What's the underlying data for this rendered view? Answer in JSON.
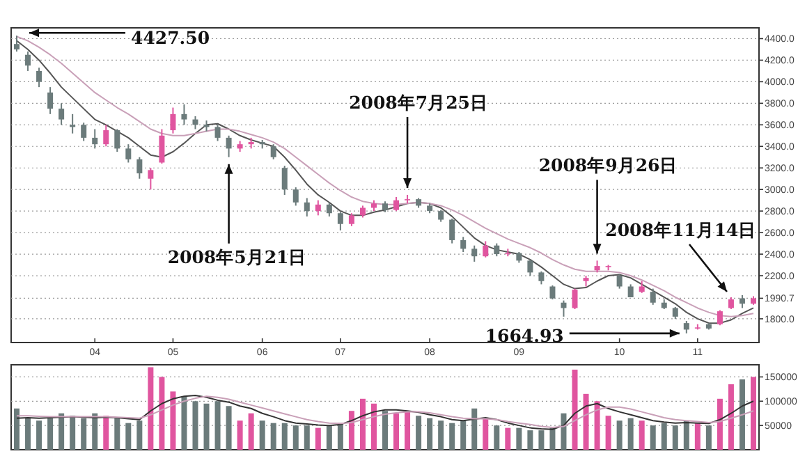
{
  "chart_data": [
    {
      "type": "candlestick",
      "ylim": [
        1580,
        4500
      ],
      "yticks": [
        {
          "value": 4400,
          "label": "4400.0"
        },
        {
          "value": 4200,
          "label": "4200.0"
        },
        {
          "value": 4000,
          "label": "4000.0"
        },
        {
          "value": 3800,
          "label": "3800.0"
        },
        {
          "value": 3600,
          "label": "3600.0"
        },
        {
          "value": 3400,
          "label": "3400.0"
        },
        {
          "value": 3200,
          "label": "3200.0"
        },
        {
          "value": 3000,
          "label": "3000.0"
        },
        {
          "value": 2800,
          "label": "2800.0"
        },
        {
          "value": 2600,
          "label": "2600.0"
        },
        {
          "value": 2400,
          "label": "2400.0"
        },
        {
          "value": 2200,
          "label": "2200.0"
        },
        {
          "value": 1990.7,
          "label": "1990.7"
        },
        {
          "value": 1800,
          "label": "1800.0"
        }
      ],
      "grid": "y",
      "categories": [
        null,
        null,
        null,
        null,
        null,
        null,
        null,
        "04",
        null,
        null,
        null,
        null,
        null,
        null,
        "05",
        null,
        null,
        null,
        null,
        null,
        null,
        null,
        "06",
        null,
        null,
        null,
        null,
        null,
        null,
        "07",
        null,
        null,
        null,
        null,
        null,
        null,
        null,
        "08",
        null,
        null,
        null,
        null,
        null,
        null,
        null,
        "09",
        null,
        null,
        null,
        null,
        null,
        null,
        null,
        null,
        "10",
        null,
        null,
        null,
        null,
        null,
        null,
        "11",
        null,
        null,
        null,
        null,
        null
      ],
      "ohlc": [
        [
          4350,
          4427.5,
          4280,
          4300
        ],
        [
          4250,
          4280,
          4100,
          4150
        ],
        [
          4100,
          4130,
          3950,
          4000
        ],
        [
          3900,
          3950,
          3700,
          3750
        ],
        [
          3750,
          3800,
          3600,
          3650
        ],
        [
          3600,
          3700,
          3520,
          3580
        ],
        [
          3600,
          3620,
          3450,
          3480
        ],
        [
          3480,
          3560,
          3380,
          3420
        ],
        [
          3420,
          3600,
          3400,
          3550
        ],
        [
          3550,
          3560,
          3350,
          3380
        ],
        [
          3380,
          3420,
          3250,
          3280
        ],
        [
          3280,
          3300,
          3100,
          3150
        ],
        [
          3100,
          3200,
          3000,
          3180
        ],
        [
          3250,
          3560,
          3240,
          3500
        ],
        [
          3550,
          3760,
          3520,
          3700
        ],
        [
          3700,
          3790,
          3600,
          3650
        ],
        [
          3650,
          3680,
          3560,
          3600
        ],
        [
          3600,
          3640,
          3540,
          3580
        ],
        [
          3580,
          3600,
          3450,
          3480
        ],
        [
          3480,
          3500,
          3300,
          3380
        ],
        [
          3380,
          3450,
          3350,
          3420
        ],
        [
          3420,
          3480,
          3380,
          3440
        ],
        [
          3440,
          3460,
          3380,
          3420
        ],
        [
          3400,
          3420,
          3280,
          3300
        ],
        [
          3200,
          3220,
          2950,
          3000
        ],
        [
          3000,
          3020,
          2850,
          2880
        ],
        [
          2880,
          2920,
          2750,
          2800
        ],
        [
          2800,
          2900,
          2760,
          2860
        ],
        [
          2860,
          2880,
          2750,
          2780
        ],
        [
          2780,
          2790,
          2620,
          2680
        ],
        [
          2680,
          2780,
          2660,
          2760
        ],
        [
          2760,
          2850,
          2740,
          2830
        ],
        [
          2830,
          2900,
          2800,
          2870
        ],
        [
          2870,
          2890,
          2790,
          2810
        ],
        [
          2810,
          2930,
          2800,
          2900
        ],
        [
          2900,
          2950,
          2870,
          2910
        ],
        [
          2910,
          2920,
          2830,
          2850
        ],
        [
          2850,
          2870,
          2780,
          2800
        ],
        [
          2800,
          2810,
          2700,
          2720
        ],
        [
          2720,
          2730,
          2500,
          2530
        ],
        [
          2530,
          2560,
          2420,
          2450
        ],
        [
          2450,
          2480,
          2330,
          2380
        ],
        [
          2380,
          2520,
          2370,
          2480
        ],
        [
          2480,
          2500,
          2380,
          2400
        ],
        [
          2400,
          2450,
          2380,
          2410
        ],
        [
          2410,
          2420,
          2320,
          2340
        ],
        [
          2340,
          2350,
          2200,
          2230
        ],
        [
          2230,
          2240,
          2120,
          2150
        ],
        [
          2100,
          2110,
          1980,
          1990
        ],
        [
          1950,
          1970,
          1820,
          1900
        ],
        [
          1900,
          2080,
          1890,
          2070
        ],
        [
          2150,
          2200,
          2100,
          2180
        ],
        [
          2250,
          2340,
          2230,
          2290
        ],
        [
          2280,
          2300,
          2250,
          2290
        ],
        [
          2200,
          2210,
          2080,
          2100
        ],
        [
          2100,
          2120,
          2000,
          2000
        ],
        [
          2050,
          2150,
          2040,
          2100
        ],
        [
          2050,
          2080,
          1930,
          1950
        ],
        [
          1950,
          1980,
          1890,
          1900
        ],
        [
          1900,
          1910,
          1800,
          1820
        ],
        [
          1760,
          1780,
          1664.93,
          1700
        ],
        [
          1720,
          1750,
          1700,
          1720
        ],
        [
          1750,
          1760,
          1700,
          1710
        ],
        [
          1750,
          1880,
          1740,
          1870
        ],
        [
          1900,
          2000,
          1890,
          1980
        ],
        [
          1990,
          2020,
          1900,
          1940
        ],
        [
          1940,
          2010,
          1930,
          1990.7
        ]
      ],
      "colors": [
        "#6b7b7b",
        "#6b7b7b",
        "#6b7b7b",
        "#6b7b7b",
        "#6b7b7b",
        "#6b7b7b",
        "#6b7b7b",
        "#6b7b7b",
        "#e0559f",
        "#6b7b7b",
        "#6b7b7b",
        "#6b7b7b",
        "#e0559f",
        "#e0559f",
        "#e0559f",
        "#6b7b7b",
        "#6b7b7b",
        "#6b7b7b",
        "#6b7b7b",
        "#6b7b7b",
        "#e0559f",
        "#e0559f",
        "#6b7b7b",
        "#6b7b7b",
        "#6b7b7b",
        "#6b7b7b",
        "#6b7b7b",
        "#e0559f",
        "#6b7b7b",
        "#6b7b7b",
        "#e0559f",
        "#e0559f",
        "#e0559f",
        "#6b7b7b",
        "#e0559f",
        "#e0559f",
        "#6b7b7b",
        "#6b7b7b",
        "#6b7b7b",
        "#6b7b7b",
        "#6b7b7b",
        "#6b7b7b",
        "#e0559f",
        "#6b7b7b",
        "#e0559f",
        "#6b7b7b",
        "#6b7b7b",
        "#6b7b7b",
        "#6b7b7b",
        "#6b7b7b",
        "#e0559f",
        "#e0559f",
        "#e0559f",
        "#e0559f",
        "#6b7b7b",
        "#6b7b7b",
        "#e0559f",
        "#6b7b7b",
        "#6b7b7b",
        "#6b7b7b",
        "#6b7b7b",
        "#e0559f",
        "#6b7b7b",
        "#e0559f",
        "#e0559f",
        "#6b7b7b",
        "#e0559f"
      ],
      "series": [
        {
          "type": "line",
          "color": "#555555",
          "values": [
            4380,
            4300,
            4200,
            4080,
            3950,
            3850,
            3750,
            3650,
            3600,
            3540,
            3480,
            3400,
            3320,
            3300,
            3350,
            3430,
            3520,
            3600,
            3610,
            3560,
            3500,
            3460,
            3430,
            3400,
            3300,
            3180,
            3050,
            2950,
            2880,
            2800,
            2760,
            2760,
            2790,
            2810,
            2840,
            2870,
            2880,
            2870,
            2830,
            2750,
            2650,
            2550,
            2480,
            2440,
            2420,
            2400,
            2350,
            2280,
            2200,
            2120,
            2080,
            2090,
            2150,
            2200,
            2210,
            2180,
            2120,
            2060,
            2000,
            1940,
            1860,
            1800,
            1760,
            1760,
            1790,
            1850,
            1900
          ]
        },
        {
          "type": "line",
          "color": "#c9a0b8",
          "values": [
            4420,
            4380,
            4320,
            4250,
            4170,
            4080,
            3990,
            3900,
            3830,
            3760,
            3700,
            3630,
            3560,
            3520,
            3500,
            3500,
            3520,
            3540,
            3560,
            3560,
            3540,
            3510,
            3480,
            3440,
            3380,
            3300,
            3220,
            3140,
            3060,
            2990,
            2930,
            2890,
            2870,
            2860,
            2860,
            2870,
            2880,
            2870,
            2850,
            2810,
            2760,
            2700,
            2640,
            2590,
            2540,
            2500,
            2460,
            2410,
            2350,
            2300,
            2260,
            2240,
            2240,
            2240,
            2230,
            2200,
            2160,
            2110,
            2060,
            2000,
            1950,
            1900,
            1860,
            1830,
            1820,
            1830,
            1850
          ]
        }
      ],
      "annotations": [
        "4427.50",
        "2008年5月21日",
        "2008年7月25日",
        "2008年9月26日",
        "2008年11月14日",
        "1664.93"
      ]
    },
    {
      "type": "bar",
      "ylim": [
        0,
        175000
      ],
      "yticks": [
        50000,
        100000,
        150000
      ],
      "grid": "y",
      "tick_labels": "y",
      "categories": [
        null,
        null,
        null,
        null,
        null,
        null,
        null,
        "04",
        null,
        null,
        null,
        null,
        null,
        null,
        "05",
        null,
        null,
        null,
        null,
        null,
        null,
        null,
        "06",
        null,
        null,
        null,
        null,
        null,
        null,
        "07",
        null,
        null,
        null,
        null,
        null,
        null,
        null,
        "08",
        null,
        null,
        null,
        null,
        null,
        null,
        null,
        "09",
        null,
        null,
        null,
        null,
        null,
        null,
        null,
        null,
        "10",
        null,
        null,
        null,
        null,
        null,
        null,
        "11",
        null,
        null,
        null,
        null,
        null
      ],
      "series": [
        {
          "type": "bar",
          "values": [
            85000,
            65000,
            60000,
            65000,
            75000,
            70000,
            65000,
            75000,
            70000,
            65000,
            55000,
            60000,
            170000,
            150000,
            120000,
            110000,
            100000,
            95000,
            100000,
            90000,
            60000,
            75000,
            60000,
            55000,
            55000,
            50000,
            50000,
            45000,
            50000,
            55000,
            80000,
            105000,
            95000,
            80000,
            75000,
            80000,
            70000,
            65000,
            60000,
            55000,
            60000,
            85000,
            65000,
            50000,
            45000,
            45000,
            40000,
            40000,
            45000,
            75000,
            165000,
            115000,
            100000,
            70000,
            60000,
            65000,
            60000,
            50000,
            55000,
            50000,
            60000,
            55000,
            50000,
            105000,
            135000,
            145000,
            150000
          ],
          "colors": [
            "#6b7b7b",
            "#6b7b7b",
            "#6b7b7b",
            "#6b7b7b",
            "#6b7b7b",
            "#6b7b7b",
            "#6b7b7b",
            "#6b7b7b",
            "#e0559f",
            "#6b7b7b",
            "#6b7b7b",
            "#6b7b7b",
            "#e0559f",
            "#e0559f",
            "#e0559f",
            "#6b7b7b",
            "#6b7b7b",
            "#6b7b7b",
            "#6b7b7b",
            "#6b7b7b",
            "#e0559f",
            "#e0559f",
            "#6b7b7b",
            "#6b7b7b",
            "#6b7b7b",
            "#6b7b7b",
            "#6b7b7b",
            "#e0559f",
            "#6b7b7b",
            "#6b7b7b",
            "#e0559f",
            "#e0559f",
            "#e0559f",
            "#6b7b7b",
            "#e0559f",
            "#e0559f",
            "#6b7b7b",
            "#6b7b7b",
            "#6b7b7b",
            "#6b7b7b",
            "#6b7b7b",
            "#6b7b7b",
            "#e0559f",
            "#6b7b7b",
            "#e0559f",
            "#6b7b7b",
            "#6b7b7b",
            "#6b7b7b",
            "#6b7b7b",
            "#6b7b7b",
            "#e0559f",
            "#e0559f",
            "#e0559f",
            "#e0559f",
            "#6b7b7b",
            "#6b7b7b",
            "#e0559f",
            "#6b7b7b",
            "#6b7b7b",
            "#6b7b7b",
            "#6b7b7b",
            "#e0559f",
            "#6b7b7b",
            "#e0559f",
            "#e0559f",
            "#6b7b7b",
            "#e0559f"
          ]
        },
        {
          "type": "line",
          "color": "#333333",
          "values": [
            65000,
            66000,
            65000,
            66000,
            67000,
            68000,
            67000,
            66000,
            67000,
            66000,
            64000,
            62000,
            80000,
            95000,
            105000,
            110000,
            112000,
            108000,
            102000,
            98000,
            90000,
            85000,
            75000,
            68000,
            60000,
            55000,
            53000,
            51000,
            50000,
            52000,
            60000,
            70000,
            78000,
            82000,
            82000,
            80000,
            77000,
            72000,
            68000,
            62000,
            60000,
            63000,
            66000,
            62000,
            55000,
            50000,
            45000,
            43000,
            42000,
            50000,
            75000,
            90000,
            95000,
            85000,
            78000,
            72000,
            66000,
            60000,
            57000,
            55000,
            56000,
            55000,
            54000,
            62000,
            75000,
            90000,
            100000
          ]
        },
        {
          "type": "line",
          "color": "#c9a0b8",
          "values": [
            70000,
            70000,
            69000,
            68000,
            68000,
            68000,
            68000,
            68000,
            68000,
            67000,
            66000,
            65000,
            72000,
            82000,
            92000,
            100000,
            106000,
            110000,
            108000,
            104000,
            98000,
            92000,
            86000,
            80000,
            74000,
            68000,
            62000,
            58000,
            55000,
            54000,
            56000,
            62000,
            68000,
            73000,
            76000,
            78000,
            78000,
            76000,
            72000,
            68000,
            65000,
            64000,
            64000,
            62000,
            58000,
            55000,
            52000,
            48000,
            46000,
            48000,
            60000,
            72000,
            82000,
            88000,
            88000,
            84000,
            78000,
            72000,
            66000,
            62000,
            60000,
            58000,
            56000,
            58000,
            65000,
            72000,
            80000
          ]
        }
      ]
    }
  ]
}
